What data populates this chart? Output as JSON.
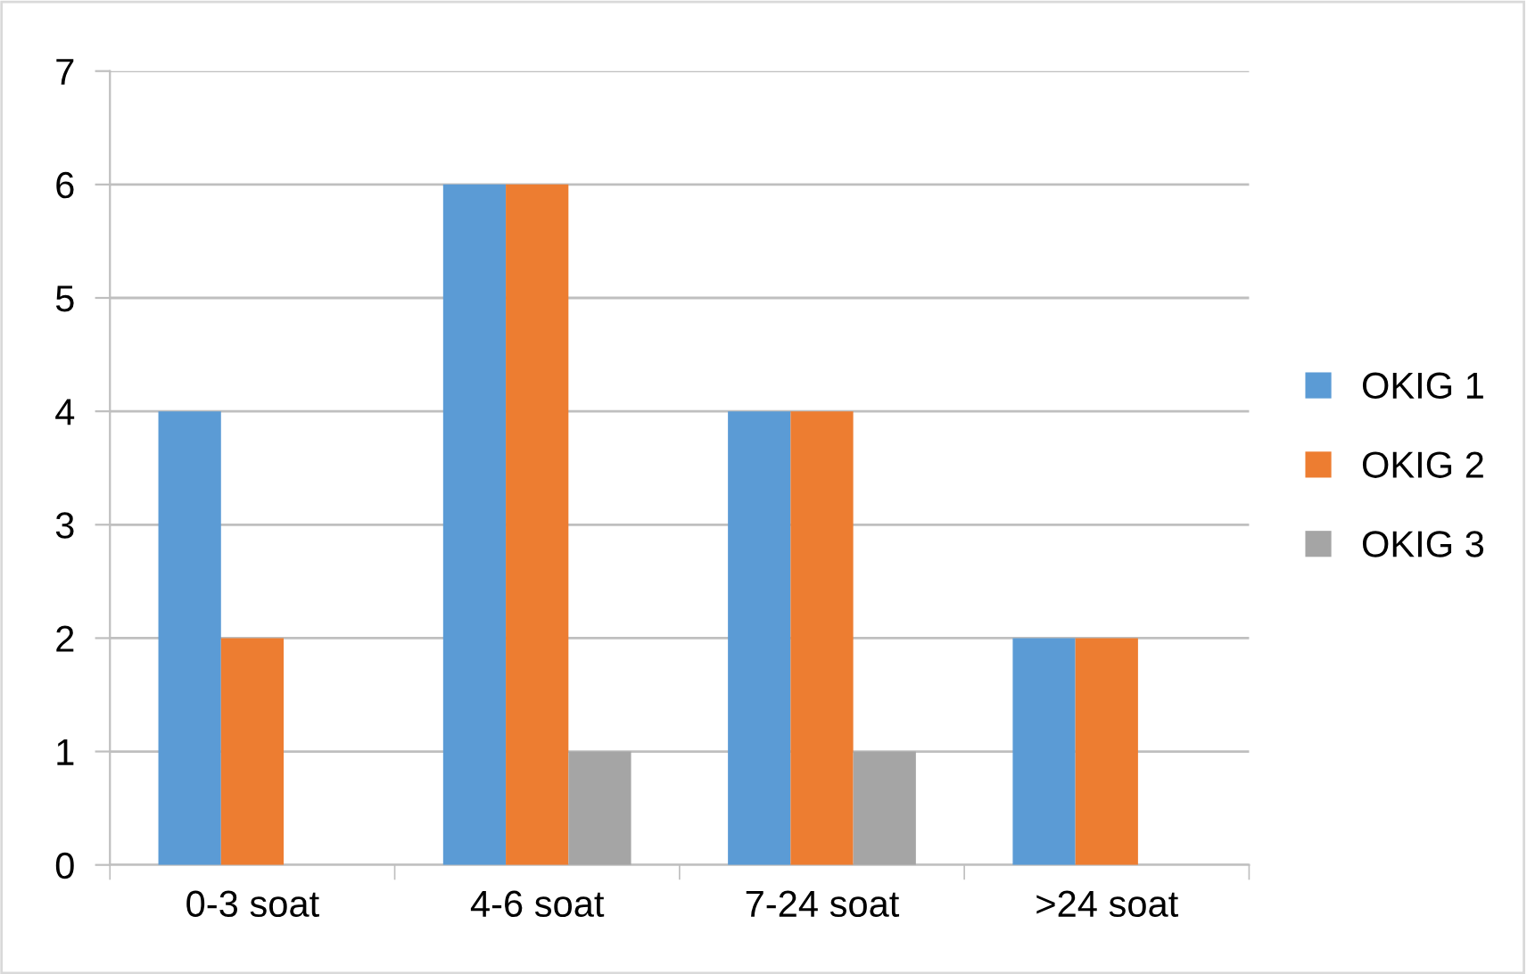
{
  "chart_data": {
    "type": "bar",
    "categories": [
      "0-3 soat",
      "4-6 soat",
      "7-24 soat",
      ">24 soat"
    ],
    "series": [
      {
        "name": "OKIG 1",
        "color": "#5b9bd5",
        "values": [
          4,
          6,
          4,
          2
        ]
      },
      {
        "name": "OKIG 2",
        "color": "#ed7d31",
        "values": [
          2,
          6,
          4,
          2
        ]
      },
      {
        "name": "OKIG 3",
        "color": "#a5a5a5",
        "values": [
          0,
          1,
          1,
          0
        ]
      }
    ],
    "ylim": [
      0,
      7
    ],
    "yticks": [
      0,
      1,
      2,
      3,
      4,
      5,
      6,
      7
    ],
    "grid": "y",
    "legend": "right"
  }
}
